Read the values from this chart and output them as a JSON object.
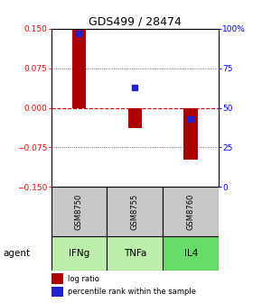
{
  "title": "GDS499 / 28474",
  "bar_values": [
    0.148,
    -0.038,
    -0.098
  ],
  "percentile_values": [
    97,
    63,
    43
  ],
  "categories": [
    "IFNg",
    "TNFa",
    "IL4"
  ],
  "gsm_labels": [
    "GSM8750",
    "GSM8755",
    "GSM8760"
  ],
  "ylim_left": [
    -0.15,
    0.15
  ],
  "ylim_right": [
    0,
    100
  ],
  "left_ticks": [
    -0.15,
    -0.075,
    0,
    0.075,
    0.15
  ],
  "right_ticks": [
    0,
    25,
    50,
    75,
    100
  ],
  "right_tick_labels": [
    "0",
    "25",
    "50",
    "75",
    "100%"
  ],
  "bar_color": "#aa0000",
  "dot_color": "#2222cc",
  "zero_line_color": "#cc0000",
  "grid_color": "#444444",
  "gray_bg": "#c8c8c8",
  "green_bg_colors": [
    "#bbeeaa",
    "#bbeeaa",
    "#66dd66"
  ],
  "agent_label": "agent",
  "legend_bar_label": "log ratio",
  "legend_dot_label": "percentile rank within the sample",
  "bar_width": 0.25
}
